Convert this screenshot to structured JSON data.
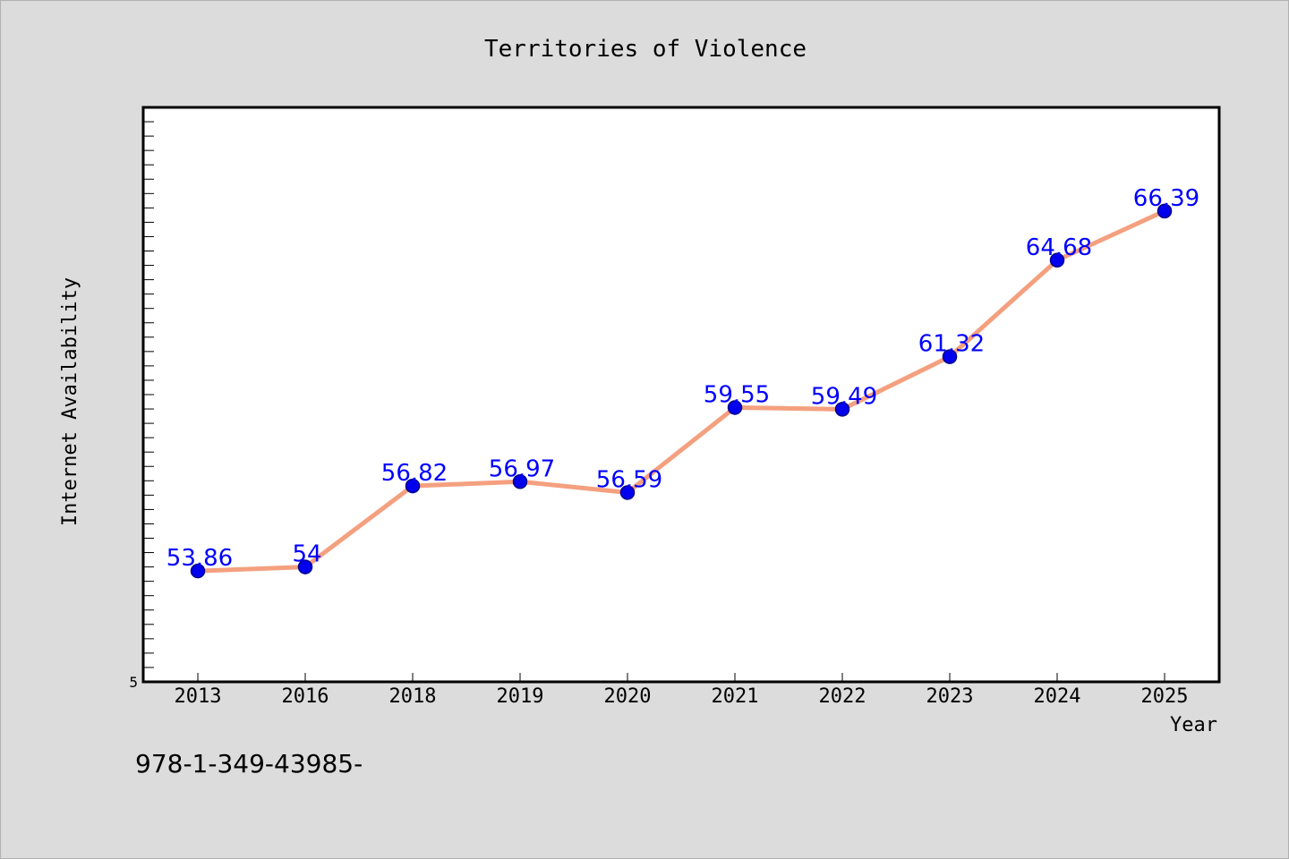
{
  "chart_data": {
    "type": "line",
    "title": "Territories of Violence",
    "xlabel": "Year",
    "ylabel": "Internet Availability",
    "categories": [
      "2013",
      "2016",
      "2018",
      "2019",
      "2020",
      "2021",
      "2022",
      "2023",
      "2024",
      "2025"
    ],
    "series": [
      {
        "values": [
          53.86,
          54,
          56.82,
          56.97,
          56.59,
          59.55,
          59.49,
          61.32,
          64.68,
          66.39
        ]
      }
    ],
    "data_labels": [
      "53.86",
      "54",
      "56.82",
      "56.97",
      "56.59",
      "59.55",
      "59.49",
      "61.32",
      "64.68",
      "66.39"
    ],
    "ytick_labels": [
      "5"
    ],
    "ylim": [
      50,
      70
    ],
    "grid": false,
    "legend": "none",
    "colors": {
      "line": "#f4a07f",
      "marker": "#0000ee",
      "marker_stroke": "#00008b",
      "data_label": "#0000ff",
      "plot_bg": "#ffffff",
      "page_bg": "#dcdcdc"
    }
  },
  "footer": {
    "code": "978-1-349-43985-"
  }
}
